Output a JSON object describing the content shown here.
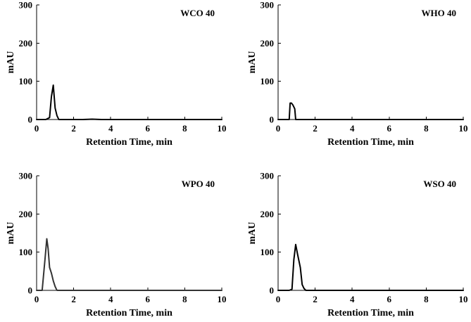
{
  "chart_data": [
    {
      "type": "line",
      "title": "WCO 40",
      "xlabel": "Retention Time, min",
      "ylabel": "mAU",
      "xlim": [
        0,
        10
      ],
      "ylim": [
        0,
        300
      ],
      "xticks": [
        0,
        2,
        4,
        6,
        8,
        10
      ],
      "yticks": [
        0,
        100,
        200,
        300
      ],
      "grid": false,
      "series": [
        {
          "name": "WCO 40",
          "color": "#000000",
          "x": [
            0,
            0.5,
            0.7,
            0.8,
            0.9,
            1.0,
            1.1,
            1.2,
            2.5,
            3.0,
            3.5,
            10
          ],
          "y": [
            0,
            0,
            5,
            60,
            90,
            30,
            10,
            0,
            0,
            1,
            0,
            0
          ]
        }
      ]
    },
    {
      "type": "line",
      "title": "WHO 40",
      "xlabel": "Retention Time, min",
      "ylabel": "mAU",
      "xlim": [
        0,
        10
      ],
      "ylim": [
        0,
        300
      ],
      "xticks": [
        0,
        2,
        4,
        6,
        8,
        10
      ],
      "yticks": [
        0,
        100,
        200,
        300
      ],
      "grid": false,
      "series": [
        {
          "name": "WHO 40",
          "color": "#000000",
          "x": [
            0,
            0.6,
            0.65,
            0.72,
            0.8,
            0.9,
            0.95,
            1.0,
            10
          ],
          "y": [
            0,
            0,
            43,
            43,
            38,
            28,
            0,
            0,
            0
          ]
        }
      ]
    },
    {
      "type": "line",
      "title": "WPO 40",
      "xlabel": "Retention Time, min",
      "ylabel": "mAU",
      "xlim": [
        0,
        10
      ],
      "ylim": [
        0,
        300
      ],
      "xticks": [
        0,
        2,
        4,
        6,
        8,
        10
      ],
      "yticks": [
        0,
        100,
        200,
        300
      ],
      "grid": false,
      "series": [
        {
          "name": "WPO 40",
          "color": "#333333",
          "x": [
            0,
            0.3,
            0.45,
            0.55,
            0.62,
            0.7,
            0.8,
            0.9,
            1.0,
            1.1,
            10
          ],
          "y": [
            0,
            0,
            80,
            135,
            110,
            60,
            45,
            25,
            10,
            0,
            0
          ]
        }
      ]
    },
    {
      "type": "line",
      "title": "WSO 40",
      "xlabel": "Retention Time, min",
      "ylabel": "mAU",
      "xlim": [
        0,
        10
      ],
      "ylim": [
        0,
        300
      ],
      "xticks": [
        0,
        2,
        4,
        6,
        8,
        10
      ],
      "yticks": [
        0,
        100,
        200,
        300
      ],
      "grid": false,
      "series": [
        {
          "name": "WSO 40",
          "color": "#000000",
          "x": [
            0,
            0.6,
            0.75,
            0.85,
            0.95,
            1.05,
            1.2,
            1.3,
            1.4,
            1.5,
            10
          ],
          "y": [
            0,
            0,
            3,
            80,
            120,
            95,
            60,
            15,
            5,
            0,
            0
          ]
        }
      ]
    }
  ]
}
